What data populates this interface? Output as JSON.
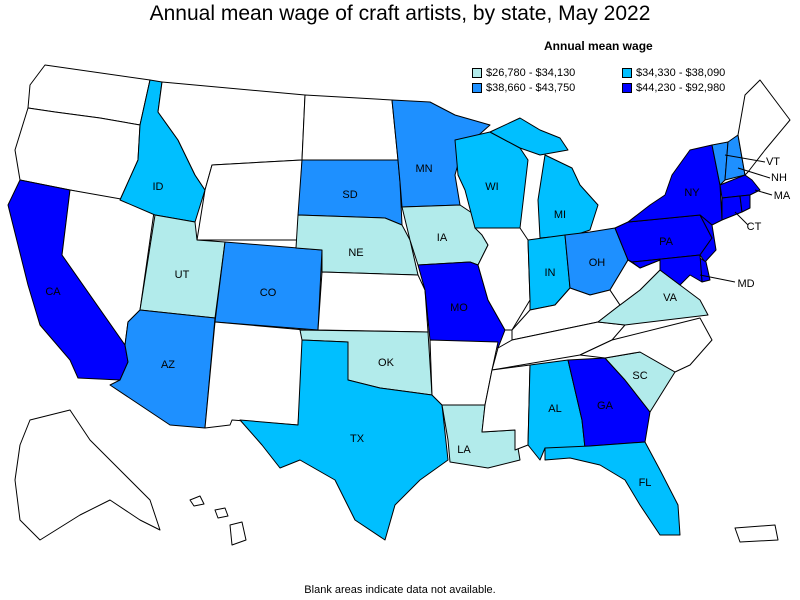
{
  "title": "Annual mean wage of craft artists, by state, May 2022",
  "legend": {
    "title": "Annual mean wage",
    "bins": [
      {
        "label": "$26,780 - $34,130",
        "color": "#b2ebeb"
      },
      {
        "label": "$34,330 - $38,090",
        "color": "#00bfff"
      },
      {
        "label": "$38,660 - $43,750",
        "color": "#1e90ff"
      },
      {
        "label": "$44,230 - $92,980",
        "color": "#0000ff"
      }
    ]
  },
  "footnote": "Blank areas indicate data not available.",
  "no_data_color": "#ffffff",
  "states": [
    {
      "abbr": "CA",
      "bin": 3
    },
    {
      "abbr": "ID",
      "bin": 1
    },
    {
      "abbr": "UT",
      "bin": 0
    },
    {
      "abbr": "AZ",
      "bin": 2
    },
    {
      "abbr": "CO",
      "bin": 2
    },
    {
      "abbr": "SD",
      "bin": 2
    },
    {
      "abbr": "NE",
      "bin": 0
    },
    {
      "abbr": "OK",
      "bin": 0
    },
    {
      "abbr": "TX",
      "bin": 1
    },
    {
      "abbr": "MN",
      "bin": 2
    },
    {
      "abbr": "IA",
      "bin": 0
    },
    {
      "abbr": "MO",
      "bin": 3
    },
    {
      "abbr": "LA",
      "bin": 0
    },
    {
      "abbr": "WI",
      "bin": 1
    },
    {
      "abbr": "MI",
      "bin": 1
    },
    {
      "abbr": "IN",
      "bin": 1
    },
    {
      "abbr": "OH",
      "bin": 2
    },
    {
      "abbr": "AL",
      "bin": 1
    },
    {
      "abbr": "GA",
      "bin": 3
    },
    {
      "abbr": "FL",
      "bin": 1
    },
    {
      "abbr": "SC",
      "bin": 0
    },
    {
      "abbr": "VA",
      "bin": 0
    },
    {
      "abbr": "PA",
      "bin": 3
    },
    {
      "abbr": "NY",
      "bin": 3
    },
    {
      "abbr": "MD",
      "bin": 3
    },
    {
      "abbr": "VT",
      "bin": 2
    },
    {
      "abbr": "NH",
      "bin": 2
    },
    {
      "abbr": "MA",
      "bin": 3
    },
    {
      "abbr": "CT",
      "bin": 3
    }
  ],
  "unlabeled_with_data": [
    {
      "abbr": "ME",
      "bin": null
    },
    {
      "abbr": "NJ",
      "bin": 3
    },
    {
      "abbr": "DE",
      "bin": 3
    },
    {
      "abbr": "RI",
      "bin": 3
    }
  ]
}
